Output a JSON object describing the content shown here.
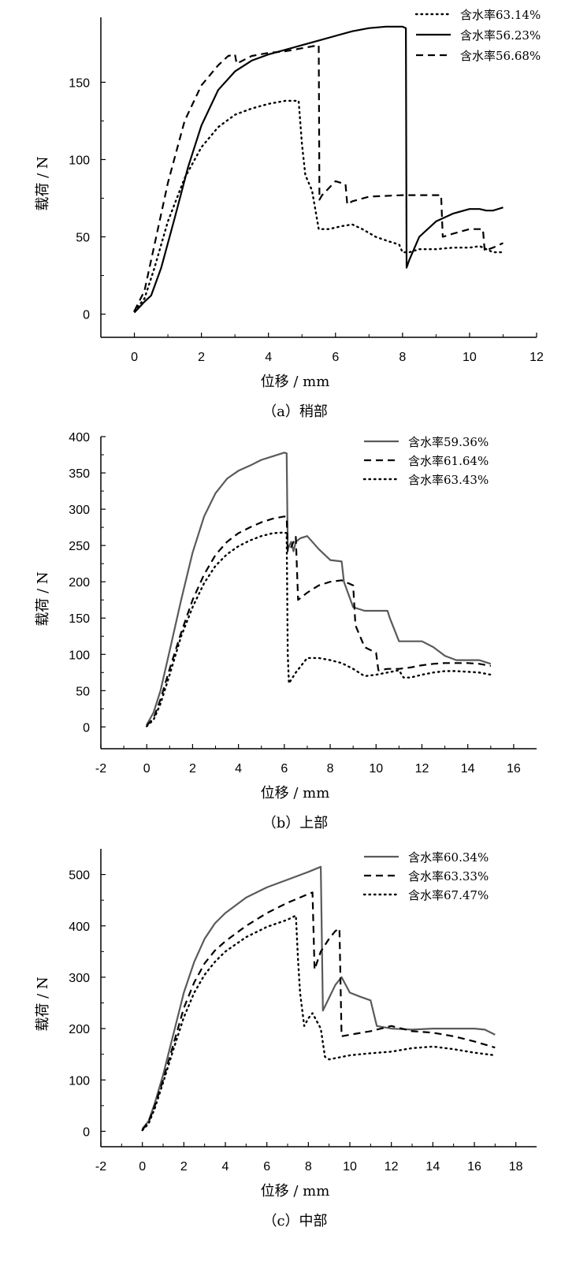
{
  "chart_data": [
    {
      "type": "line",
      "caption": "（a）稍部",
      "xlabel": "位移 / mm",
      "ylabel": "载荷 / N",
      "xlim": [
        -1,
        12
      ],
      "ylim": [
        -15,
        192
      ],
      "xticks": [
        0,
        2,
        4,
        6,
        8,
        10,
        12
      ],
      "yticks": [
        0,
        50,
        100,
        150
      ],
      "legend_position": "top-right",
      "series": [
        {
          "name": "含水率63.14%",
          "style": "dotted",
          "x": [
            0,
            0.3,
            0.6,
            1.0,
            1.5,
            2.0,
            2.5,
            3.0,
            3.5,
            4.0,
            4.5,
            4.9,
            5.0,
            5.1,
            5.3,
            5.5,
            5.8,
            6.2,
            6.5,
            6.8,
            7.2,
            7.6,
            7.9,
            8.0,
            8.2,
            8.5,
            9.0,
            9.5,
            10.0,
            10.3,
            10.5,
            10.7,
            11.0
          ],
          "y": [
            2,
            10,
            30,
            60,
            88,
            108,
            121,
            129,
            133,
            136,
            138,
            138,
            110,
            90,
            80,
            55,
            55,
            57,
            58,
            55,
            50,
            47,
            45,
            40,
            40,
            42,
            42,
            43,
            43,
            44,
            42,
            40,
            40
          ]
        },
        {
          "name": "含水率56.23%",
          "style": "solid",
          "x": [
            0,
            0.3,
            0.5,
            0.8,
            1.2,
            1.6,
            2.0,
            2.5,
            3.0,
            3.5,
            4.0,
            4.5,
            5.0,
            5.5,
            6.0,
            6.5,
            7.0,
            7.5,
            8.0,
            8.1,
            8.12,
            8.2,
            8.5,
            9.0,
            9.5,
            10.0,
            10.3,
            10.5,
            10.7,
            11.0
          ],
          "y": [
            1,
            8,
            12,
            30,
            62,
            95,
            122,
            145,
            157,
            164,
            168,
            171,
            174,
            177,
            180,
            183,
            185,
            186,
            186,
            185,
            30,
            35,
            50,
            60,
            65,
            68,
            68,
            67,
            67,
            69
          ]
        },
        {
          "name": "含水率56.68%",
          "style": "dashed",
          "x": [
            0,
            0.3,
            0.6,
            1.0,
            1.5,
            2.0,
            2.5,
            2.8,
            3.0,
            3.05,
            3.5,
            4.0,
            4.5,
            5.0,
            5.5,
            5.52,
            5.6,
            6.0,
            6.3,
            6.35,
            6.5,
            7.0,
            8.0,
            9.0,
            9.15,
            9.2,
            9.5,
            10.0,
            10.4,
            10.45,
            10.7,
            11.0
          ],
          "y": [
            2,
            15,
            45,
            85,
            125,
            148,
            161,
            167,
            168,
            162,
            167,
            169,
            170,
            172,
            174,
            74,
            77,
            86,
            84,
            71,
            73,
            76,
            77,
            77,
            77,
            50,
            52,
            55,
            55,
            41,
            43,
            46
          ]
        }
      ]
    },
    {
      "type": "line",
      "caption": "（b）上部",
      "xlabel": "位移 / mm",
      "ylabel": "载荷 / N",
      "xlim": [
        -2,
        17
      ],
      "ylim": [
        -30,
        400
      ],
      "xticks": [
        -2,
        0,
        2,
        4,
        6,
        8,
        10,
        12,
        14,
        16
      ],
      "yticks": [
        0,
        50,
        100,
        150,
        200,
        250,
        300,
        350,
        400
      ],
      "legend_position": "top-right",
      "series": [
        {
          "name": "含水率59.36%",
          "style": "solid-gray",
          "x": [
            0,
            0.3,
            0.6,
            1.0,
            1.5,
            2.0,
            2.5,
            3.0,
            3.5,
            4.0,
            4.5,
            5.0,
            5.5,
            6.0,
            6.1,
            6.15,
            6.3,
            6.4,
            6.5,
            6.7,
            7.0,
            7.5,
            8.0,
            8.5,
            8.6,
            9.0,
            9.5,
            10.0,
            10.5,
            10.6,
            11.0,
            11.5,
            12.0,
            12.5,
            13.0,
            13.5,
            14.0,
            14.5,
            15.0
          ],
          "y": [
            3,
            20,
            50,
            105,
            175,
            240,
            290,
            322,
            342,
            353,
            360,
            368,
            373,
            378,
            377,
            245,
            255,
            242,
            255,
            260,
            263,
            245,
            230,
            228,
            200,
            165,
            160,
            160,
            160,
            150,
            118,
            118,
            118,
            110,
            98,
            92,
            92,
            92,
            87
          ]
        },
        {
          "name": "含水率61.64%",
          "style": "dashed",
          "x": [
            0,
            0.3,
            0.6,
            1.0,
            1.5,
            2.0,
            2.5,
            3.0,
            3.5,
            4.0,
            4.5,
            5.0,
            5.5,
            6.0,
            6.1,
            6.15,
            6.3,
            6.5,
            6.6,
            7.0,
            7.5,
            8.0,
            8.5,
            9.0,
            9.1,
            9.5,
            10.0,
            10.1,
            10.5,
            11.0,
            11.5,
            12.0,
            12.5,
            13.0,
            13.5,
            14.0,
            14.5,
            15.0
          ],
          "y": [
            2,
            12,
            38,
            80,
            130,
            175,
            210,
            237,
            255,
            267,
            275,
            282,
            287,
            290,
            289,
            242,
            248,
            262,
            175,
            185,
            195,
            200,
            202,
            195,
            140,
            110,
            102,
            78,
            80,
            80,
            82,
            85,
            87,
            88,
            88,
            88,
            87,
            84
          ]
        },
        {
          "name": "含水率63.43%",
          "style": "dotted",
          "x": [
            0,
            0.3,
            0.6,
            1.0,
            1.5,
            2.0,
            2.5,
            3.0,
            3.5,
            4.0,
            4.5,
            5.0,
            5.5,
            6.0,
            6.1,
            6.15,
            6.2,
            6.5,
            7.0,
            7.5,
            8.0,
            8.5,
            9.0,
            9.5,
            10.0,
            10.5,
            11.0,
            11.2,
            11.5,
            12.0,
            12.5,
            13.0,
            13.5,
            14.0,
            14.5,
            15.0
          ],
          "y": [
            1,
            10,
            32,
            72,
            125,
            165,
            198,
            222,
            238,
            249,
            257,
            263,
            267,
            268,
            267,
            100,
            60,
            75,
            95,
            95,
            92,
            88,
            80,
            70,
            72,
            75,
            78,
            68,
            68,
            72,
            75,
            77,
            77,
            76,
            75,
            72
          ]
        }
      ]
    },
    {
      "type": "line",
      "caption": "（c）中部",
      "xlabel": "位移 / mm",
      "ylabel": "载荷 / N",
      "xlim": [
        -2,
        19
      ],
      "ylim": [
        -30,
        550
      ],
      "xticks": [
        -2,
        0,
        2,
        4,
        6,
        8,
        10,
        12,
        14,
        16,
        18
      ],
      "yticks": [
        0,
        100,
        200,
        300,
        400,
        500
      ],
      "legend_position": "top-right",
      "series": [
        {
          "name": "含水率60.34%",
          "style": "solid-gray",
          "x": [
            0,
            0.3,
            0.6,
            1.0,
            1.5,
            2.0,
            2.5,
            3.0,
            3.5,
            4.0,
            5.0,
            6.0,
            7.0,
            8.0,
            8.6,
            8.7,
            9.0,
            9.3,
            9.6,
            10.0,
            10.5,
            11.0,
            11.3,
            12.0,
            13.0,
            14.0,
            15.0,
            16.0,
            16.5,
            17.0
          ],
          "y": [
            5,
            20,
            55,
            110,
            190,
            270,
            330,
            375,
            405,
            425,
            455,
            475,
            490,
            505,
            515,
            235,
            260,
            285,
            300,
            270,
            262,
            255,
            205,
            200,
            198,
            200,
            200,
            200,
            198,
            188
          ]
        },
        {
          "name": "含水率63.33%",
          "style": "dashed",
          "x": [
            0,
            0.3,
            0.6,
            1.0,
            1.5,
            2.0,
            2.5,
            3.0,
            3.5,
            4.0,
            5.0,
            6.0,
            7.0,
            8.0,
            8.2,
            8.3,
            8.6,
            9.0,
            9.3,
            9.5,
            9.6,
            10.0,
            11.0,
            12.0,
            13.0,
            14.0,
            15.0,
            16.0,
            17.0
          ],
          "y": [
            3,
            18,
            50,
            100,
            170,
            240,
            290,
            327,
            352,
            370,
            400,
            425,
            445,
            462,
            465,
            315,
            350,
            375,
            390,
            395,
            185,
            188,
            195,
            205,
            195,
            192,
            185,
            175,
            163
          ]
        },
        {
          "name": "含水率67.47%",
          "style": "dotted",
          "x": [
            0,
            0.3,
            0.6,
            1.0,
            1.5,
            2.0,
            2.5,
            3.0,
            3.5,
            4.0,
            5.0,
            6.0,
            7.0,
            7.4,
            7.5,
            7.6,
            7.8,
            8.0,
            8.2,
            8.6,
            8.8,
            9.0,
            10.0,
            11.0,
            12.0,
            13.0,
            14.0,
            15.0,
            16.0,
            17.0
          ],
          "y": [
            2,
            15,
            45,
            95,
            160,
            222,
            270,
            305,
            330,
            350,
            378,
            398,
            412,
            420,
            335,
            270,
            205,
            220,
            230,
            200,
            145,
            140,
            148,
            152,
            155,
            162,
            165,
            160,
            153,
            148
          ]
        }
      ]
    }
  ]
}
